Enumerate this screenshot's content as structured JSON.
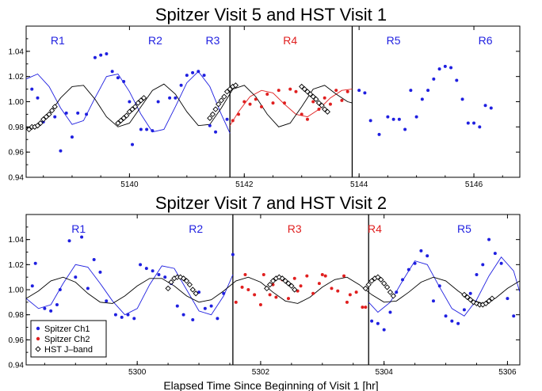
{
  "colors": {
    "ch1": "#1f1fe0",
    "ch2": "#e01f1f",
    "hst": "#000000",
    "model": "#000000"
  },
  "xlabel": "Elapsed Time Since Beginning of Visit 1 [hr]",
  "chart_data": [
    {
      "type": "scatter",
      "title": "Spitzer Visit 5 and HST Visit 1",
      "xlim": [
        5138.2,
        5146.8
      ],
      "ylim": [
        0.94,
        1.06
      ],
      "xticks": [
        5140,
        5142,
        5144,
        5146
      ],
      "yticks": [
        0.94,
        0.96,
        0.98,
        1.0,
        1.02,
        1.04
      ],
      "ytick_labels": [
        "0.94",
        "0.96",
        "0.98",
        "1.00",
        "1.02",
        "1.04"
      ],
      "vlines": [
        5141.75,
        5143.88
      ],
      "regions": [
        {
          "label": "R1",
          "x": 5138.75,
          "color": "ch1"
        },
        {
          "label": "R2",
          "x": 5140.45,
          "color": "ch1"
        },
        {
          "label": "R3",
          "x": 5141.45,
          "color": "ch1"
        },
        {
          "label": "R4",
          "x": 5142.8,
          "color": "ch2"
        },
        {
          "label": "R5",
          "x": 5144.6,
          "color": "ch1"
        },
        {
          "label": "R6",
          "x": 5146.2,
          "color": "ch1"
        }
      ],
      "series": [
        {
          "key": "ch1",
          "marker": "dot",
          "x": [
            5138.3,
            5138.4,
            5138.5,
            5138.7,
            5138.8,
            5138.9,
            5139.0,
            5139.1,
            5139.25,
            5139.4,
            5139.5,
            5139.6,
            5139.7,
            5139.8,
            5139.9,
            5140.0,
            5140.05,
            5140.2,
            5140.3,
            5140.4,
            5140.5,
            5140.7,
            5140.8,
            5140.9,
            5141.0,
            5141.1,
            5141.2,
            5141.3,
            5141.4,
            5141.5,
            5141.7,
            5144.0,
            5144.1,
            5144.2,
            5144.35,
            5144.5,
            5144.6,
            5144.7,
            5144.8,
            5144.9,
            5145.0,
            5145.1,
            5145.2,
            5145.3,
            5145.4,
            5145.5,
            5145.6,
            5145.7,
            5145.8,
            5145.9,
            5146.0,
            5146.1,
            5146.2,
            5146.3
          ],
          "y": [
            1.01,
            1.003,
            0.984,
            0.988,
            0.961,
            0.991,
            0.972,
            0.991,
            0.99,
            1.035,
            1.037,
            1.038,
            1.024,
            1.019,
            1.016,
            1.0,
            0.966,
            0.978,
            0.978,
            0.977,
            1.0,
            1.003,
            1.003,
            1.013,
            1.021,
            1.023,
            1.024,
            1.021,
            0.981,
            0.976,
            0.986,
            1.009,
            1.007,
            0.985,
            0.974,
            0.988,
            0.986,
            0.986,
            0.978,
            1.009,
            0.988,
            1.002,
            1.009,
            1.018,
            1.026,
            1.028,
            1.027,
            1.017,
            1.002,
            0.983,
            0.983,
            0.98,
            0.997,
            0.995
          ]
        },
        {
          "key": "ch2",
          "marker": "dot",
          "x": [
            5141.8,
            5141.9,
            5142.0,
            5142.1,
            5142.2,
            5142.3,
            5142.4,
            5142.5,
            5142.6,
            5142.7,
            5142.8,
            5142.9,
            5143.0,
            5143.1,
            5143.2,
            5143.3,
            5143.4,
            5143.5,
            5143.6,
            5143.7,
            5143.8
          ],
          "y": [
            0.985,
            0.99,
            1.0,
            0.998,
            1.002,
            0.996,
            1.006,
            0.999,
            1.009,
            0.999,
            1.01,
            1.008,
            0.99,
            0.986,
            1.0,
            0.994,
            1.003,
            0.998,
            1.009,
            1.001,
            1.008
          ]
        },
        {
          "key": "hst",
          "marker": "diamond",
          "x": [
            5138.25,
            5138.3,
            5138.35,
            5138.4,
            5138.45,
            5138.5,
            5138.55,
            5138.6,
            5138.65,
            5138.7,
            5139.8,
            5139.85,
            5139.9,
            5139.95,
            5140.0,
            5140.05,
            5140.1,
            5140.15,
            5140.2,
            5140.25,
            5141.4,
            5141.45,
            5141.5,
            5141.55,
            5141.6,
            5141.65,
            5141.7,
            5141.75,
            5141.8,
            5141.85,
            5143.0,
            5143.05,
            5143.1,
            5143.15,
            5143.2,
            5143.25,
            5143.3,
            5143.35,
            5143.4,
            5143.45
          ],
          "y": [
            0.978,
            0.98,
            0.98,
            0.981,
            0.983,
            0.986,
            0.988,
            0.99,
            0.993,
            0.996,
            0.983,
            0.985,
            0.987,
            0.989,
            0.992,
            0.994,
            0.996,
            0.999,
            1.001,
            1.003,
            0.987,
            0.99,
            0.994,
            0.998,
            1.001,
            1.004,
            1.008,
            1.01,
            1.012,
            1.013,
            1.012,
            1.01,
            1.008,
            1.006,
            1.004,
            1.002,
            0.999,
            0.997,
            0.994,
            0.992
          ]
        }
      ],
      "models": [
        {
          "key": "ch1",
          "x": [
            5138.2,
            5138.4,
            5138.6,
            5138.8,
            5139.0,
            5139.2,
            5139.4,
            5139.6,
            5139.8,
            5140.0,
            5140.2,
            5140.4,
            5140.6,
            5140.8,
            5141.0,
            5141.2,
            5141.4,
            5141.6,
            5141.75
          ],
          "y": [
            1.018,
            1.022,
            1.012,
            0.995,
            0.982,
            0.985,
            1.003,
            1.02,
            1.022,
            1.008,
            0.99,
            0.976,
            0.978,
            0.996,
            1.015,
            1.024,
            1.012,
            0.99,
            0.975
          ]
        },
        {
          "key": "ch2",
          "x": [
            5141.75,
            5141.9,
            5142.1,
            5142.3,
            5142.5,
            5142.7,
            5142.9,
            5143.1,
            5143.3,
            5143.5,
            5143.7,
            5143.88
          ],
          "y": [
            0.981,
            0.992,
            1.004,
            1.009,
            1.007,
            0.998,
            0.99,
            0.988,
            0.994,
            1.003,
            1.009,
            1.01
          ]
        },
        {
          "key": "hst",
          "x": [
            5138.2,
            5138.4,
            5138.6,
            5138.8,
            5139.0,
            5139.2,
            5139.4,
            5139.6,
            5139.8,
            5140.0,
            5140.2,
            5140.4,
            5140.6,
            5140.8,
            5141.0,
            5141.2,
            5141.4,
            5141.6,
            5141.8,
            5142.0,
            5142.2,
            5142.4,
            5142.6,
            5142.8,
            5143.0,
            5143.2,
            5143.4,
            5143.6,
            5143.8,
            5143.88
          ],
          "y": [
            0.979,
            0.981,
            0.99,
            1.003,
            1.012,
            1.013,
            1.002,
            0.988,
            0.98,
            0.983,
            0.996,
            1.009,
            1.014,
            1.006,
            0.992,
            0.981,
            0.982,
            0.995,
            1.01,
            1.013,
            1.004,
            0.99,
            0.98,
            0.983,
            0.996,
            1.01,
            1.013,
            1.006,
            1.0,
            0.999
          ]
        }
      ]
    },
    {
      "type": "scatter",
      "title": "Spitzer Visit 7 and HST Visit 2",
      "xlim": [
        5298.2,
        5306.2
      ],
      "ylim": [
        0.94,
        1.06
      ],
      "xticks": [
        5300,
        5302,
        5304,
        5306
      ],
      "yticks": [
        0.94,
        0.96,
        0.98,
        1.0,
        1.02,
        1.04
      ],
      "ytick_labels": [
        "0.94",
        "0.96",
        "0.98",
        "1.00",
        "1.02",
        "1.04"
      ],
      "vlines": [
        5301.55,
        5303.75
      ],
      "regions": [
        {
          "label": "R1",
          "x": 5299.05,
          "color": "ch1"
        },
        {
          "label": "R2",
          "x": 5300.95,
          "color": "ch1"
        },
        {
          "label": "R3",
          "x": 5302.55,
          "color": "ch2"
        },
        {
          "label": "R4",
          "x": 5303.85,
          "color": "ch2"
        },
        {
          "label": "R5",
          "x": 5305.3,
          "color": "ch1"
        }
      ],
      "legend": {
        "placement": "lower-left",
        "entries": [
          {
            "key": "ch1",
            "label": "Spitzer Ch1",
            "marker": "dot"
          },
          {
            "key": "ch2",
            "label": "Spitzer Ch2",
            "marker": "dot"
          },
          {
            "key": "hst",
            "label": "HST J–band",
            "marker": "diamond"
          }
        ]
      },
      "series": [
        {
          "key": "ch1",
          "marker": "dot",
          "x": [
            5298.3,
            5298.35,
            5298.5,
            5298.6,
            5298.7,
            5298.75,
            5298.9,
            5299.0,
            5299.1,
            5299.2,
            5299.3,
            5299.4,
            5299.5,
            5299.65,
            5299.75,
            5299.85,
            5299.95,
            5300.05,
            5300.15,
            5300.25,
            5300.35,
            5300.45,
            5300.55,
            5300.65,
            5300.75,
            5300.9,
            5301.0,
            5301.1,
            5301.2,
            5301.3,
            5301.4,
            5301.55,
            5303.8,
            5303.9,
            5304.0,
            5304.1,
            5304.2,
            5304.3,
            5304.4,
            5304.5,
            5304.6,
            5304.7,
            5304.8,
            5304.9,
            5305.0,
            5305.1,
            5305.2,
            5305.3,
            5305.4,
            5305.5,
            5305.6,
            5305.7,
            5305.8,
            5305.9,
            5306.0,
            5306.1
          ],
          "y": [
            1.003,
            1.021,
            0.985,
            0.983,
            0.988,
            1.0,
            1.039,
            1.01,
            1.042,
            1.001,
            1.024,
            1.014,
            0.991,
            0.98,
            0.978,
            0.98,
            0.977,
            1.02,
            1.017,
            1.015,
            1.012,
            1.01,
            1.005,
            0.987,
            0.98,
            0.976,
            0.998,
            0.985,
            0.987,
            0.977,
            0.997,
            1.028,
            0.975,
            0.973,
            0.968,
            0.982,
            0.998,
            1.008,
            1.016,
            1.021,
            1.031,
            1.027,
            0.991,
            1.003,
            0.979,
            0.975,
            0.973,
            0.984,
            0.997,
            1.012,
            1.02,
            1.04,
            1.029,
            1.021,
            0.993,
            0.979
          ]
        },
        {
          "key": "ch2",
          "marker": "dot",
          "x": [
            5301.6,
            5301.7,
            5301.8,
            5301.9,
            5302.0,
            5302.05,
            5302.15,
            5302.25,
            5302.35,
            5302.45,
            5302.55,
            5302.65,
            5302.75,
            5302.85,
            5302.95,
            5303.05,
            5303.15,
            5303.25,
            5303.35,
            5303.45,
            5303.55,
            5303.65,
            5303.7,
            5301.75,
            5302.2,
            5302.6,
            5303.0,
            5303.4
          ],
          "y": [
            0.99,
            1.002,
            1.0,
            0.996,
            0.988,
            1.012,
            0.996,
            0.994,
            1.008,
            0.993,
            1.009,
            1.003,
            1.011,
            0.997,
            1.005,
            1.011,
            1.001,
            0.999,
            1.011,
            0.996,
            0.998,
            0.986,
            0.986,
            1.012,
            1.004,
            0.999,
            1.012,
            0.99
          ]
        },
        {
          "key": "hst",
          "marker": "diamond",
          "x": [
            5300.5,
            5300.55,
            5300.6,
            5300.65,
            5300.7,
            5300.75,
            5300.8,
            5300.85,
            5300.9,
            5300.95,
            5302.1,
            5302.15,
            5302.2,
            5302.25,
            5302.3,
            5302.35,
            5302.4,
            5302.45,
            5302.5,
            5302.55,
            5303.7,
            5303.75,
            5303.8,
            5303.85,
            5303.9,
            5303.95,
            5304.0,
            5304.05,
            5304.1,
            5304.15,
            5305.3,
            5305.35,
            5305.4,
            5305.45,
            5305.5,
            5305.55,
            5305.6,
            5305.65,
            5305.7,
            5305.75
          ],
          "y": [
            1.001,
            1.006,
            1.009,
            1.01,
            1.01,
            1.009,
            1.007,
            1.004,
            1.0,
            0.997,
            1.001,
            1.004,
            1.007,
            1.009,
            1.01,
            1.009,
            1.007,
            1.005,
            1.003,
            1.0,
            1.001,
            1.004,
            1.007,
            1.009,
            1.01,
            1.008,
            1.005,
            1.002,
            0.998,
            0.995,
            0.996,
            0.994,
            0.992,
            0.99,
            0.989,
            0.988,
            0.988,
            0.989,
            0.991,
            0.993
          ]
        }
      ],
      "models": [
        {
          "key": "ch1",
          "x": [
            5298.2,
            5298.4,
            5298.6,
            5298.8,
            5299.0,
            5299.2,
            5299.4,
            5299.6,
            5299.8,
            5300.0,
            5300.2,
            5300.4,
            5300.6,
            5300.8,
            5301.0,
            5301.2,
            5301.4,
            5301.55
          ],
          "y": [
            0.993,
            0.985,
            0.988,
            1.005,
            1.02,
            1.018,
            1.005,
            0.991,
            0.98,
            0.985,
            1.004,
            1.019,
            1.017,
            1.0,
            0.983,
            0.98,
            0.995,
            1.012
          ]
        },
        {
          "key": "ch1",
          "x": [
            5303.75,
            5303.9,
            5304.1,
            5304.3,
            5304.5,
            5304.7,
            5304.9,
            5305.1,
            5305.3,
            5305.5,
            5305.7,
            5305.9,
            5306.1,
            5306.2
          ],
          "y": [
            0.99,
            0.982,
            0.99,
            1.007,
            1.023,
            1.02,
            1.002,
            0.985,
            0.979,
            0.992,
            1.011,
            1.026,
            1.015,
            0.998
          ]
        },
        {
          "key": "hst",
          "x": [
            5298.2,
            5298.4,
            5298.6,
            5298.8,
            5299.0,
            5299.2,
            5299.4,
            5299.6,
            5299.8,
            5300.0,
            5300.2,
            5300.4,
            5300.6,
            5300.8,
            5301.0,
            5301.2,
            5301.4,
            5301.6,
            5301.8,
            5302.0,
            5302.2,
            5302.4,
            5302.6,
            5302.8,
            5303.0,
            5303.2,
            5303.4,
            5303.6,
            5303.8,
            5304.0,
            5304.2,
            5304.4,
            5304.6,
            5304.8,
            5305.0,
            5305.2,
            5305.4,
            5305.6,
            5305.8,
            5306.0,
            5306.2
          ],
          "y": [
            0.993,
            0.999,
            1.007,
            1.01,
            1.006,
            0.997,
            0.99,
            0.989,
            0.995,
            1.003,
            1.009,
            1.009,
            1.003,
            0.995,
            0.99,
            0.992,
            0.999,
            1.007,
            1.01,
            1.006,
            0.998,
            0.991,
            0.989,
            0.994,
            1.002,
            1.008,
            1.01,
            1.004,
            0.996,
            0.99,
            0.991,
            0.998,
            1.006,
            1.01,
            1.007,
            0.999,
            0.992,
            0.989,
            0.993,
            1.001,
            1.007
          ]
        }
      ]
    }
  ]
}
